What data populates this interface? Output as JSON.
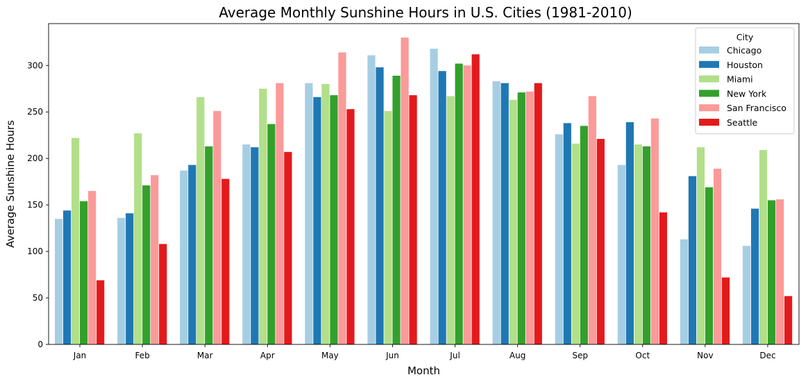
{
  "chart_data": {
    "type": "bar",
    "title": "Average Monthly Sunshine Hours in U.S. Cities (1981-2010)",
    "xlabel": "Month",
    "ylabel": "Average Sunshine Hours",
    "categories": [
      "Jan",
      "Feb",
      "Mar",
      "Apr",
      "May",
      "Jun",
      "Jul",
      "Aug",
      "Sep",
      "Oct",
      "Nov",
      "Dec"
    ],
    "ylim": [
      0,
      345
    ],
    "yticks": [
      0,
      50,
      100,
      150,
      200,
      250,
      300
    ],
    "grid": false,
    "legend": {
      "title": "City",
      "placement": "top-right"
    },
    "series": [
      {
        "name": "Chicago",
        "color": "#a6cee3",
        "values": [
          135,
          136,
          187,
          215,
          281,
          311,
          318,
          283,
          226,
          193,
          113,
          106
        ]
      },
      {
        "name": "Houston",
        "color": "#1f78b4",
        "values": [
          144,
          141,
          193,
          212,
          266,
          298,
          294,
          281,
          238,
          239,
          181,
          146
        ]
      },
      {
        "name": "Miami",
        "color": "#b2df8a",
        "values": [
          222,
          227,
          266,
          275,
          280,
          251,
          267,
          263,
          216,
          215,
          212,
          209
        ]
      },
      {
        "name": "New York",
        "color": "#33a02c",
        "values": [
          154,
          171,
          213,
          237,
          268,
          289,
          302,
          271,
          235,
          213,
          169,
          155
        ]
      },
      {
        "name": "San Francisco",
        "color": "#fb9a99",
        "values": [
          165,
          182,
          251,
          281,
          314,
          330,
          300,
          272,
          267,
          243,
          189,
          156
        ]
      },
      {
        "name": "Seattle",
        "color": "#e31a1c",
        "values": [
          69,
          108,
          178,
          207,
          253,
          268,
          312,
          281,
          221,
          142,
          72,
          52
        ]
      }
    ]
  }
}
